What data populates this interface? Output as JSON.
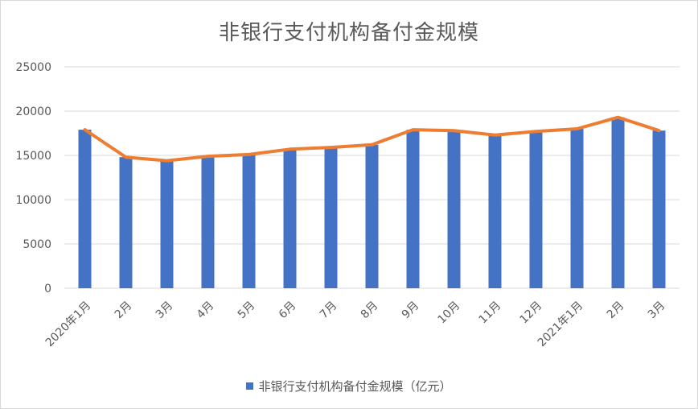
{
  "chart_data": {
    "type": "bar",
    "title": "非银行支付机构备付金规模",
    "categories": [
      "2020年1月",
      "2月",
      "3月",
      "4月",
      "5月",
      "6月",
      "7月",
      "8月",
      "9月",
      "10月",
      "11月",
      "12月",
      "2021年1月",
      "2月",
      "3月"
    ],
    "series": [
      {
        "name": "非银行支付机构备付金规模（亿元）",
        "values": [
          17900,
          14800,
          14400,
          14900,
          15100,
          15700,
          15900,
          16200,
          17900,
          17800,
          17300,
          17700,
          18000,
          19300,
          17800
        ],
        "color": "#4472c4"
      }
    ],
    "overlay_line_color": "#ed7d31",
    "ylim": [
      0,
      25000
    ],
    "yticks": [
      "0",
      "5000",
      "10000",
      "15000",
      "20000",
      "25000"
    ],
    "grid": true,
    "legend_position": "bottom"
  }
}
